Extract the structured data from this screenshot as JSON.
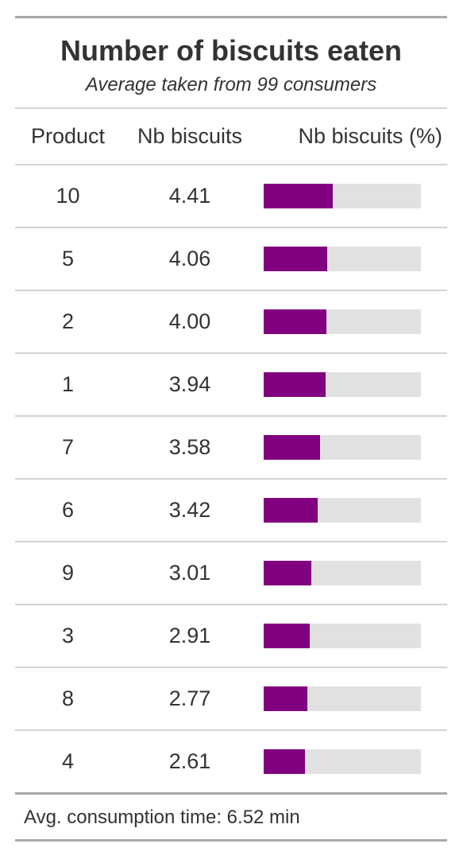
{
  "chart_data": {
    "type": "table",
    "title": "Number of biscuits eaten",
    "subtitle": "Average taken from 99 consumers",
    "columns": [
      "Product",
      "Nb biscuits",
      "Nb biscuits (%)"
    ],
    "rows": [
      {
        "product": "10",
        "nb": "4.41",
        "pct": 44.1
      },
      {
        "product": "5",
        "nb": "4.06",
        "pct": 40.6
      },
      {
        "product": "2",
        "nb": "4.00",
        "pct": 40.0
      },
      {
        "product": "1",
        "nb": "3.94",
        "pct": 39.4
      },
      {
        "product": "7",
        "nb": "3.58",
        "pct": 35.8
      },
      {
        "product": "6",
        "nb": "3.42",
        "pct": 34.2
      },
      {
        "product": "9",
        "nb": "3.01",
        "pct": 30.1
      },
      {
        "product": "3",
        "nb": "2.91",
        "pct": 29.1
      },
      {
        "product": "8",
        "nb": "2.77",
        "pct": 27.7
      },
      {
        "product": "4",
        "nb": "2.61",
        "pct": 26.1
      }
    ],
    "bar_range": [
      0,
      100
    ],
    "footer": "Avg. consumption time: 6.52 min",
    "colors": {
      "bar_fill": "#800080",
      "bar_track": "#e1e1e1"
    }
  }
}
